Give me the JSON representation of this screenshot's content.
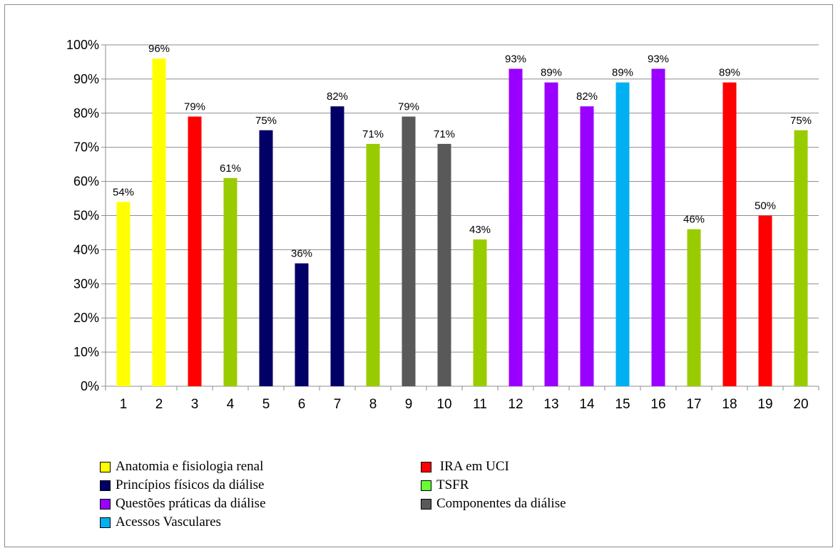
{
  "chart_data": {
    "type": "bar",
    "categories": [
      "1",
      "2",
      "3",
      "4",
      "5",
      "6",
      "7",
      "8",
      "9",
      "10",
      "11",
      "12",
      "13",
      "14",
      "15",
      "16",
      "17",
      "18",
      "19",
      "20"
    ],
    "values": [
      54,
      96,
      79,
      61,
      75,
      36,
      82,
      71,
      79,
      71,
      43,
      93,
      89,
      82,
      89,
      93,
      46,
      89,
      50,
      75
    ],
    "data_labels": [
      "54%",
      "96%",
      "79%",
      "61%",
      "75%",
      "36%",
      "82%",
      "71%",
      "79%",
      "71%",
      "43%",
      "93%",
      "89%",
      "82%",
      "89%",
      "93%",
      "46%",
      "89%",
      "50%",
      "75%"
    ],
    "bar_groups": [
      "anatomia",
      "anatomia",
      "ira",
      "tsfr",
      "principios",
      "principios",
      "principios",
      "tsfr",
      "componentes",
      "componentes",
      "tsfr",
      "questoes",
      "questoes",
      "questoes",
      "acessos",
      "questoes",
      "tsfr",
      "ira",
      "ira",
      "tsfr"
    ],
    "ylim": [
      0,
      100
    ],
    "yticks": [
      "0%",
      "10%",
      "20%",
      "30%",
      "40%",
      "50%",
      "60%",
      "70%",
      "80%",
      "90%",
      "100%"
    ],
    "grid": true,
    "legend_position": "bottom",
    "title": "",
    "xlabel": "",
    "ylabel": ""
  },
  "groups": {
    "anatomia": {
      "color": "#FFFF00",
      "legend_color": "#FFFF00"
    },
    "ira": {
      "color": "#FF0000",
      "legend_color": "#FF0000"
    },
    "principios": {
      "color": "#000066",
      "legend_color": "#000066"
    },
    "tsfr": {
      "color": "#99CC00",
      "legend_color": "#66FF33"
    },
    "questoes": {
      "color": "#9900FF",
      "legend_color": "#9900FF"
    },
    "componentes": {
      "color": "#595959",
      "legend_color": "#595959"
    },
    "acessos": {
      "color": "#00B0F0",
      "legend_color": "#00B0F0"
    }
  },
  "legend": {
    "anatomia": "Anatomia e fisiologia renal",
    "ira": " IRA em UCI",
    "principios": "Princípios físicos da diálise",
    "tsfr": "TSFR",
    "questoes": "Questões práticas da diálise",
    "componentes": "Componentes da diálise",
    "acessos": "Acessos Vasculares"
  }
}
